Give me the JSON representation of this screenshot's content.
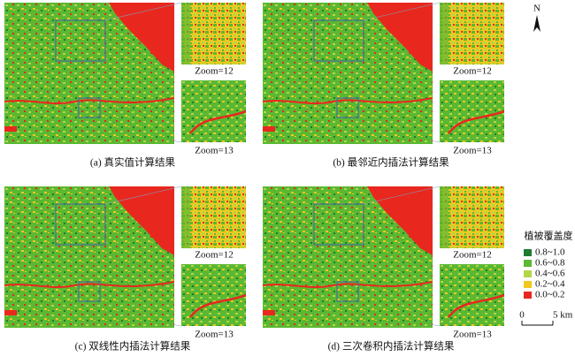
{
  "panels": [
    {
      "caption": "(a) 真实值计算结果",
      "zoom_labels": [
        "Zoom=12",
        "Zoom=13"
      ]
    },
    {
      "caption": "(b) 最邻近内插法计算结果",
      "zoom_labels": [
        "Zoom=12",
        "Zoom=13"
      ]
    },
    {
      "caption": "(c) 双线性内插法计算结果",
      "zoom_labels": [
        "Zoom=12",
        "Zoom=13"
      ]
    },
    {
      "caption": "(d) 三次卷积内插法计算结果",
      "zoom_labels": [
        "Zoom=12",
        "Zoom=13"
      ]
    }
  ],
  "legend": {
    "title": "植被覆盖度",
    "items": [
      {
        "label": "0.8~1.0",
        "color": "#1e7b32"
      },
      {
        "label": "0.6~0.8",
        "color": "#5ab832"
      },
      {
        "label": "0.4~0.6",
        "color": "#b4d64a"
      },
      {
        "label": "0.2~0.4",
        "color": "#f2c81e"
      },
      {
        "label": "0.0~0.2",
        "color": "#e8281e"
      }
    ]
  },
  "scale_bar": {
    "labels": [
      "0",
      "5 km"
    ]
  },
  "north": "N"
}
